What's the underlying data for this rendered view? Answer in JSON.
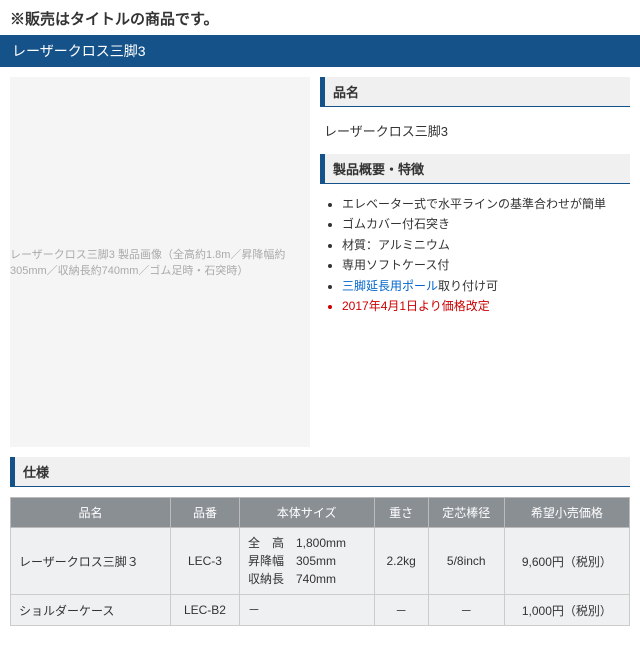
{
  "notice": "※販売はタイトルの商品です。",
  "title_bar": "レーザークロス三脚3",
  "image_alt": "レーザークロス三脚3 製品画像（全高約1.8m／昇降幅約305mm／収納長約740mm／ゴム足時・石突時）",
  "sections": {
    "name_header": "品名",
    "product_name": "レーザークロス三脚3",
    "overview_header": "製品概要・特徴",
    "spec_header": "仕様"
  },
  "features": [
    {
      "text": "エレベーター式で水平ラインの基準合わせが簡単"
    },
    {
      "text": "ゴムカバー付石突き"
    },
    {
      "text": "材質：アルミニウム"
    },
    {
      "text": "専用ソフトケース付"
    },
    {
      "prefix_link": "三脚延長用ポール",
      "suffix": "取り付け可"
    },
    {
      "text": "2017年4月1日より価格改定",
      "red": true
    }
  ],
  "spec_table": {
    "columns": [
      "品名",
      "品番",
      "本体サイズ",
      "重さ",
      "定芯棒径",
      "希望小売価格"
    ],
    "rows": [
      {
        "name": "レーザークロス三脚３",
        "code": "LEC-3",
        "size": "全　高　1,800mm\n昇降幅　305mm\n収納長　740mm",
        "weight": "2.2kg",
        "diameter": "5/8inch",
        "price": "9,600円（税別）"
      },
      {
        "name": "ショルダーケース",
        "code": "LEC-B2",
        "size": "－",
        "weight": "－",
        "diameter": "－",
        "price": "1,000円（税別）"
      }
    ]
  },
  "colors": {
    "brand_blue": "#155289",
    "link_blue": "#0066cc",
    "alert_red": "#cc0000",
    "th_bg": "#8a8f94",
    "td_bg": "#eef0f1"
  }
}
